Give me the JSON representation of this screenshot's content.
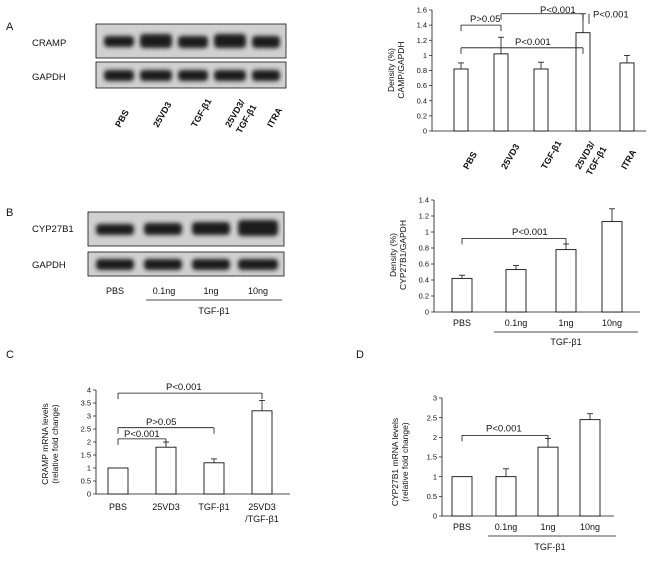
{
  "colors": {
    "ink": "#111111",
    "bar_fill": "#ffffff",
    "band": "#1a1a1a",
    "blot_bg": "#d0d0d0"
  },
  "panels": {
    "A": {
      "letter": "A",
      "blots": {
        "rows": [
          "CRAMP",
          "GAPDH"
        ],
        "lanes": [
          "PBS",
          "25VD3",
          "TGF-β1",
          "25VD3/",
          "TGF-β1",
          "ITRA"
        ]
      },
      "chart": {
        "ylabel_line1": "Density (%)",
        "ylabel_line2": "CAMP/GAPDH",
        "categories": [
          "PBS",
          "25VD3",
          "TGF-β1",
          "25VD3/",
          "TGF-β1",
          "ITRA"
        ]
      }
    },
    "B": {
      "letter": "B",
      "blots": {
        "rows": [
          "CYP27B1",
          "GAPDH"
        ],
        "lanes": [
          "PBS",
          "0.1ng",
          "1ng",
          "10ng"
        ],
        "group_label": "TGF-β1"
      },
      "chart": {
        "ylabel_line1": "Density (%)",
        "ylabel_line2": "CYP27B1/GAPDH",
        "categories": [
          "PBS",
          "0.1ng",
          "1ng",
          "10ng"
        ],
        "group_label": "TGF-β1"
      }
    },
    "C": {
      "letter": "C",
      "chart": {
        "ylabel_line1": "CRAMP  mRNA levels",
        "ylabel_line2": "(relative fold change)",
        "categories": [
          "PBS",
          "25VD3",
          "TGF-β1",
          "25VD3",
          "/TGF-β1"
        ]
      }
    },
    "D": {
      "letter": "D",
      "chart": {
        "ylabel_line1": "CYP27B1  mRNA levels",
        "ylabel_line2": "(relative fold change)",
        "categories": [
          "PBS",
          "0.1ng",
          "1ng",
          "10ng"
        ],
        "group_label": "TGF-β1"
      }
    }
  },
  "chart_data": [
    {
      "id": "A",
      "type": "bar",
      "categories": [
        "PBS",
        "25VD3",
        "TGF-β1",
        "25VD3/TGF-β1",
        "ITRA"
      ],
      "values": [
        0.82,
        1.02,
        0.82,
        1.3,
        0.9
      ],
      "errors": [
        0.08,
        0.22,
        0.09,
        0.25,
        0.1
      ],
      "ylabel": "Density (%) CAMP/GAPDH",
      "ylim": [
        0,
        1.6
      ],
      "yticks": [
        "0",
        "0.2",
        "0.4",
        "0.6",
        "0.8",
        "1",
        "1.2",
        "1.4",
        "1.6"
      ],
      "annotations": [
        "P>0.05",
        "P<0.001",
        "P<0.001",
        "P<0.001"
      ]
    },
    {
      "id": "B",
      "type": "bar",
      "categories": [
        "PBS",
        "0.1ng",
        "1ng",
        "10ng"
      ],
      "values": [
        0.42,
        0.53,
        0.78,
        1.13
      ],
      "errors": [
        0.04,
        0.05,
        0.07,
        0.16
      ],
      "ylabel": "Density (%) CYP27B1/GAPDH",
      "ylim": [
        0,
        1.4
      ],
      "yticks": [
        "0",
        "0.2",
        "0.4",
        "0.6",
        "0.8",
        "1",
        "1.2",
        "1.4"
      ],
      "annotations": [
        "P<0.001"
      ]
    },
    {
      "id": "C",
      "type": "bar",
      "categories": [
        "PBS",
        "25VD3",
        "TGF-β1",
        "25VD3/TGF-β1"
      ],
      "values": [
        1.0,
        1.8,
        1.2,
        3.2
      ],
      "errors": [
        0.0,
        0.2,
        0.15,
        0.4
      ],
      "ylabel": "CRAMP mRNA levels (relative fold change)",
      "ylim": [
        0,
        4
      ],
      "yticks": [
        "0",
        "0.5",
        "1",
        "1.5",
        "2",
        "2.5",
        "3",
        "3.5",
        "4"
      ],
      "annotations": [
        "P<0.001",
        "P>0.05",
        "P<0.001"
      ]
    },
    {
      "id": "D",
      "type": "bar",
      "categories": [
        "PBS",
        "0.1ng",
        "1ng",
        "10ng"
      ],
      "values": [
        1.0,
        1.0,
        1.75,
        2.45
      ],
      "errors": [
        0.0,
        0.2,
        0.22,
        0.15
      ],
      "ylabel": "CYP27B1 mRNA levels (relative fold change)",
      "ylim": [
        0,
        3
      ],
      "yticks": [
        "0",
        "0.5",
        "1",
        "1.5",
        "2",
        "2.5",
        "3"
      ],
      "annotations": [
        "P<0.001"
      ]
    }
  ]
}
